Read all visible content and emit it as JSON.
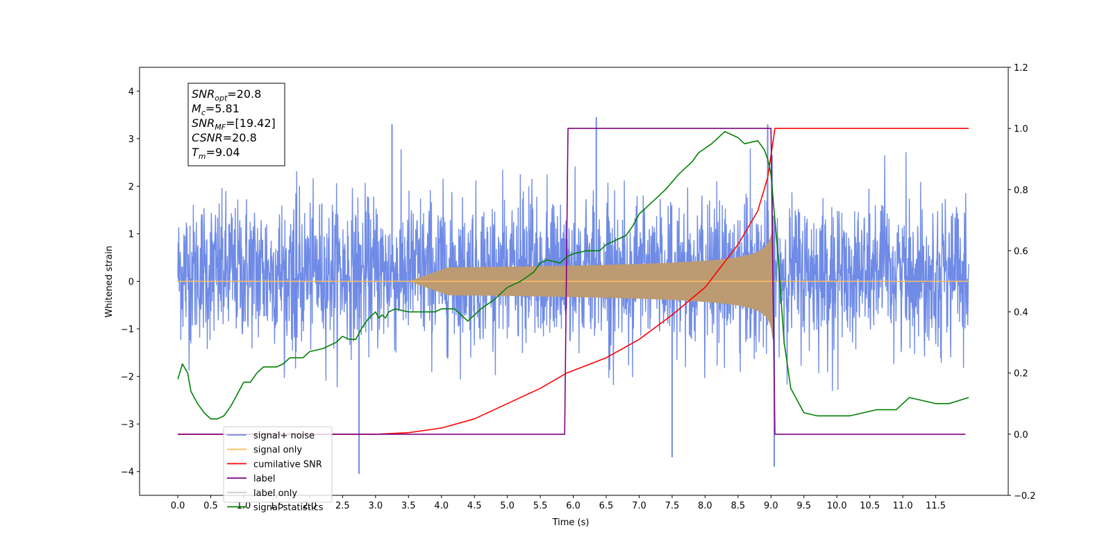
{
  "chart_data": {
    "type": "line",
    "xlabel": "Time (s)",
    "ylabel": "Whitened strain",
    "xlim": [
      -0.58,
      12.6
    ],
    "ylim_left": [
      -4.5,
      4.5
    ],
    "ylim_right": [
      -0.2,
      1.2
    ],
    "x_ticks": [
      "0.0",
      "0.5",
      "1.0",
      "1.5",
      "2.0",
      "2.5",
      "3.0",
      "3.5",
      "4.0",
      "4.5",
      "5.0",
      "5.5",
      "6.0",
      "6.5",
      "7.0",
      "7.5",
      "8.0",
      "8.5",
      "9.0",
      "9.5",
      "10.0",
      "10.5",
      "11.0",
      "11.5"
    ],
    "y_ticks_left": [
      "−4",
      "−3",
      "−2",
      "−1",
      "0",
      "1",
      "2",
      "3",
      "4"
    ],
    "y_ticks_right": [
      "−0.2",
      "0.0",
      "0.2",
      "0.4",
      "0.6",
      "0.8",
      "1.0",
      "1.2"
    ],
    "info_box": [
      {
        "base": "SNR",
        "sub": "opt",
        "rest": "=20.8"
      },
      {
        "base": "M",
        "sub": "c",
        "rest": "=5.81"
      },
      {
        "base": "SNR",
        "sub": "MF",
        "rest": "=[19.42]"
      },
      {
        "base": "CSNR",
        "sub": "",
        "rest": "=20.8"
      },
      {
        "base": "T",
        "sub": "m",
        "rest": "=9.04"
      }
    ],
    "legend": [
      {
        "label": "signal+ noise",
        "color": "#6f8be6"
      },
      {
        "label": "signal only",
        "color": "#ffbf60"
      },
      {
        "label": "cumilative SNR",
        "color": "#ff0000"
      },
      {
        "label": "label",
        "color": "#800080"
      },
      {
        "label": "label only",
        "color": "#cccccc"
      },
      {
        "label": "signal statistics",
        "color": "#008000"
      }
    ],
    "noise": {
      "name": "signal+ noise",
      "color": "#6f8be6",
      "x_range": [
        0.0,
        12.0
      ],
      "typical_envelope": [
        -1.9,
        2.4
      ],
      "extremes": [
        {
          "x": 2.75,
          "y": -4.05
        },
        {
          "x": 6.35,
          "y": 3.45
        },
        {
          "x": 7.5,
          "y": -3.7
        },
        {
          "x": 9.05,
          "y": -3.9
        },
        {
          "x": 8.95,
          "y": 3.3
        },
        {
          "x": 3.25,
          "y": 3.3
        }
      ]
    },
    "signal_only": {
      "name": "signal only",
      "color": "#ffbf60",
      "fill_color": "#bc9a72",
      "x_start": 3.5,
      "x_end": 9.04,
      "peak_amplitude": 1.25
    },
    "series": [
      {
        "name": "cumilative SNR",
        "axis": "right",
        "color": "#ff0000",
        "points": [
          [
            0.0,
            0.0
          ],
          [
            2.0,
            0.0
          ],
          [
            3.0,
            0.0
          ],
          [
            3.5,
            0.005
          ],
          [
            4.0,
            0.02
          ],
          [
            4.5,
            0.05
          ],
          [
            5.0,
            0.1
          ],
          [
            5.5,
            0.15
          ],
          [
            5.9,
            0.2
          ],
          [
            6.5,
            0.25
          ],
          [
            7.0,
            0.31
          ],
          [
            7.5,
            0.39
          ],
          [
            8.0,
            0.48
          ],
          [
            8.5,
            0.62
          ],
          [
            8.8,
            0.73
          ],
          [
            8.95,
            0.84
          ],
          [
            9.04,
            0.97
          ],
          [
            9.06,
            1.0
          ],
          [
            12.0,
            1.0
          ]
        ]
      },
      {
        "name": "label",
        "axis": "right",
        "color": "#800080",
        "points": [
          [
            0.0,
            0.0
          ],
          [
            5.87,
            0.0
          ],
          [
            5.92,
            1.0
          ],
          [
            9.0,
            1.0
          ],
          [
            9.06,
            0.0
          ],
          [
            11.95,
            0.0
          ]
        ]
      },
      {
        "name": "signal statistics",
        "axis": "right",
        "color": "#008000",
        "points": [
          [
            0.0,
            0.18
          ],
          [
            0.07,
            0.23
          ],
          [
            0.15,
            0.2
          ],
          [
            0.2,
            0.14
          ],
          [
            0.3,
            0.1
          ],
          [
            0.4,
            0.07
          ],
          [
            0.5,
            0.05
          ],
          [
            0.6,
            0.05
          ],
          [
            0.7,
            0.06
          ],
          [
            0.8,
            0.09
          ],
          [
            0.9,
            0.13
          ],
          [
            1.0,
            0.17
          ],
          [
            1.1,
            0.17
          ],
          [
            1.2,
            0.2
          ],
          [
            1.3,
            0.22
          ],
          [
            1.5,
            0.22
          ],
          [
            1.6,
            0.23
          ],
          [
            1.7,
            0.25
          ],
          [
            1.9,
            0.25
          ],
          [
            2.0,
            0.27
          ],
          [
            2.2,
            0.28
          ],
          [
            2.4,
            0.3
          ],
          [
            2.5,
            0.32
          ],
          [
            2.6,
            0.31
          ],
          [
            2.7,
            0.31
          ],
          [
            2.8,
            0.35
          ],
          [
            2.9,
            0.38
          ],
          [
            3.0,
            0.4
          ],
          [
            3.05,
            0.38
          ],
          [
            3.1,
            0.39
          ],
          [
            3.15,
            0.38
          ],
          [
            3.2,
            0.4
          ],
          [
            3.3,
            0.41
          ],
          [
            3.5,
            0.4
          ],
          [
            3.7,
            0.4
          ],
          [
            3.9,
            0.4
          ],
          [
            4.0,
            0.41
          ],
          [
            4.2,
            0.41
          ],
          [
            4.3,
            0.39
          ],
          [
            4.4,
            0.37
          ],
          [
            4.5,
            0.39
          ],
          [
            4.6,
            0.41
          ],
          [
            4.8,
            0.44
          ],
          [
            5.0,
            0.48
          ],
          [
            5.2,
            0.5
          ],
          [
            5.4,
            0.53
          ],
          [
            5.5,
            0.56
          ],
          [
            5.6,
            0.57
          ],
          [
            5.8,
            0.56
          ],
          [
            5.9,
            0.58
          ],
          [
            6.0,
            0.59
          ],
          [
            6.2,
            0.6
          ],
          [
            6.4,
            0.6
          ],
          [
            6.5,
            0.62
          ],
          [
            6.6,
            0.63
          ],
          [
            6.8,
            0.65
          ],
          [
            6.9,
            0.68
          ],
          [
            7.0,
            0.72
          ],
          [
            7.2,
            0.76
          ],
          [
            7.4,
            0.8
          ],
          [
            7.6,
            0.85
          ],
          [
            7.8,
            0.89
          ],
          [
            7.9,
            0.92
          ],
          [
            8.1,
            0.95
          ],
          [
            8.2,
            0.97
          ],
          [
            8.3,
            0.99
          ],
          [
            8.5,
            0.97
          ],
          [
            8.6,
            0.95
          ],
          [
            8.8,
            0.96
          ],
          [
            8.9,
            0.93
          ],
          [
            8.95,
            0.9
          ],
          [
            9.0,
            0.85
          ],
          [
            9.1,
            0.6
          ],
          [
            9.2,
            0.3
          ],
          [
            9.3,
            0.15
          ],
          [
            9.5,
            0.07
          ],
          [
            9.7,
            0.06
          ],
          [
            9.9,
            0.06
          ],
          [
            10.2,
            0.06
          ],
          [
            10.6,
            0.08
          ],
          [
            10.9,
            0.08
          ],
          [
            11.1,
            0.12
          ],
          [
            11.3,
            0.11
          ],
          [
            11.5,
            0.1
          ],
          [
            11.7,
            0.1
          ],
          [
            12.0,
            0.12
          ]
        ]
      }
    ]
  }
}
